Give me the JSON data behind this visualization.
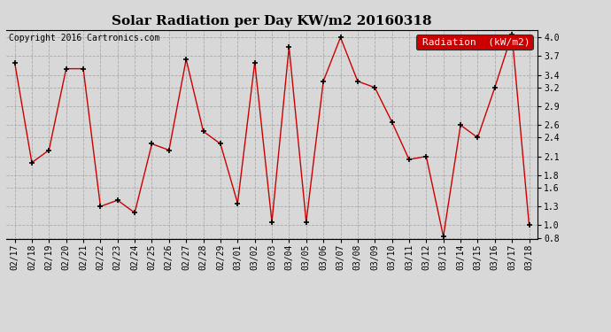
{
  "title": "Solar Radiation per Day KW/m2 20160318",
  "copyright": "Copyright 2016 Cartronics.com",
  "legend_label": "Radiation  (kW/m2)",
  "dates": [
    "02/17",
    "02/18",
    "02/19",
    "02/20",
    "02/21",
    "02/22",
    "02/23",
    "02/24",
    "02/25",
    "02/26",
    "02/27",
    "02/28",
    "02/29",
    "03/01",
    "03/02",
    "03/03",
    "03/04",
    "03/05",
    "03/06",
    "03/07",
    "03/08",
    "03/09",
    "03/10",
    "03/11",
    "03/12",
    "03/13",
    "03/14",
    "03/15",
    "03/16",
    "03/17",
    "03/18"
  ],
  "values": [
    3.6,
    2.0,
    2.2,
    3.5,
    3.5,
    1.3,
    1.4,
    1.2,
    2.3,
    2.2,
    3.65,
    2.5,
    2.3,
    1.35,
    3.6,
    1.05,
    3.85,
    1.05,
    3.3,
    4.0,
    3.3,
    3.2,
    2.65,
    2.05,
    2.1,
    0.82,
    2.6,
    2.4,
    3.2,
    4.05,
    1.0
  ],
  "ylim_low": 0.78,
  "ylim_high": 4.12,
  "yticks": [
    0.8,
    1.0,
    1.3,
    1.6,
    1.8,
    2.1,
    2.4,
    2.6,
    2.9,
    3.2,
    3.4,
    3.7,
    4.0
  ],
  "line_color": "#cc0000",
  "marker_color": "#000000",
  "bg_color": "#d8d8d8",
  "grid_color": "#aaaaaa",
  "legend_bg": "#cc0000",
  "legend_fg": "#ffffff",
  "title_fontsize": 11,
  "copyright_fontsize": 7,
  "tick_fontsize": 7,
  "legend_fontsize": 8
}
